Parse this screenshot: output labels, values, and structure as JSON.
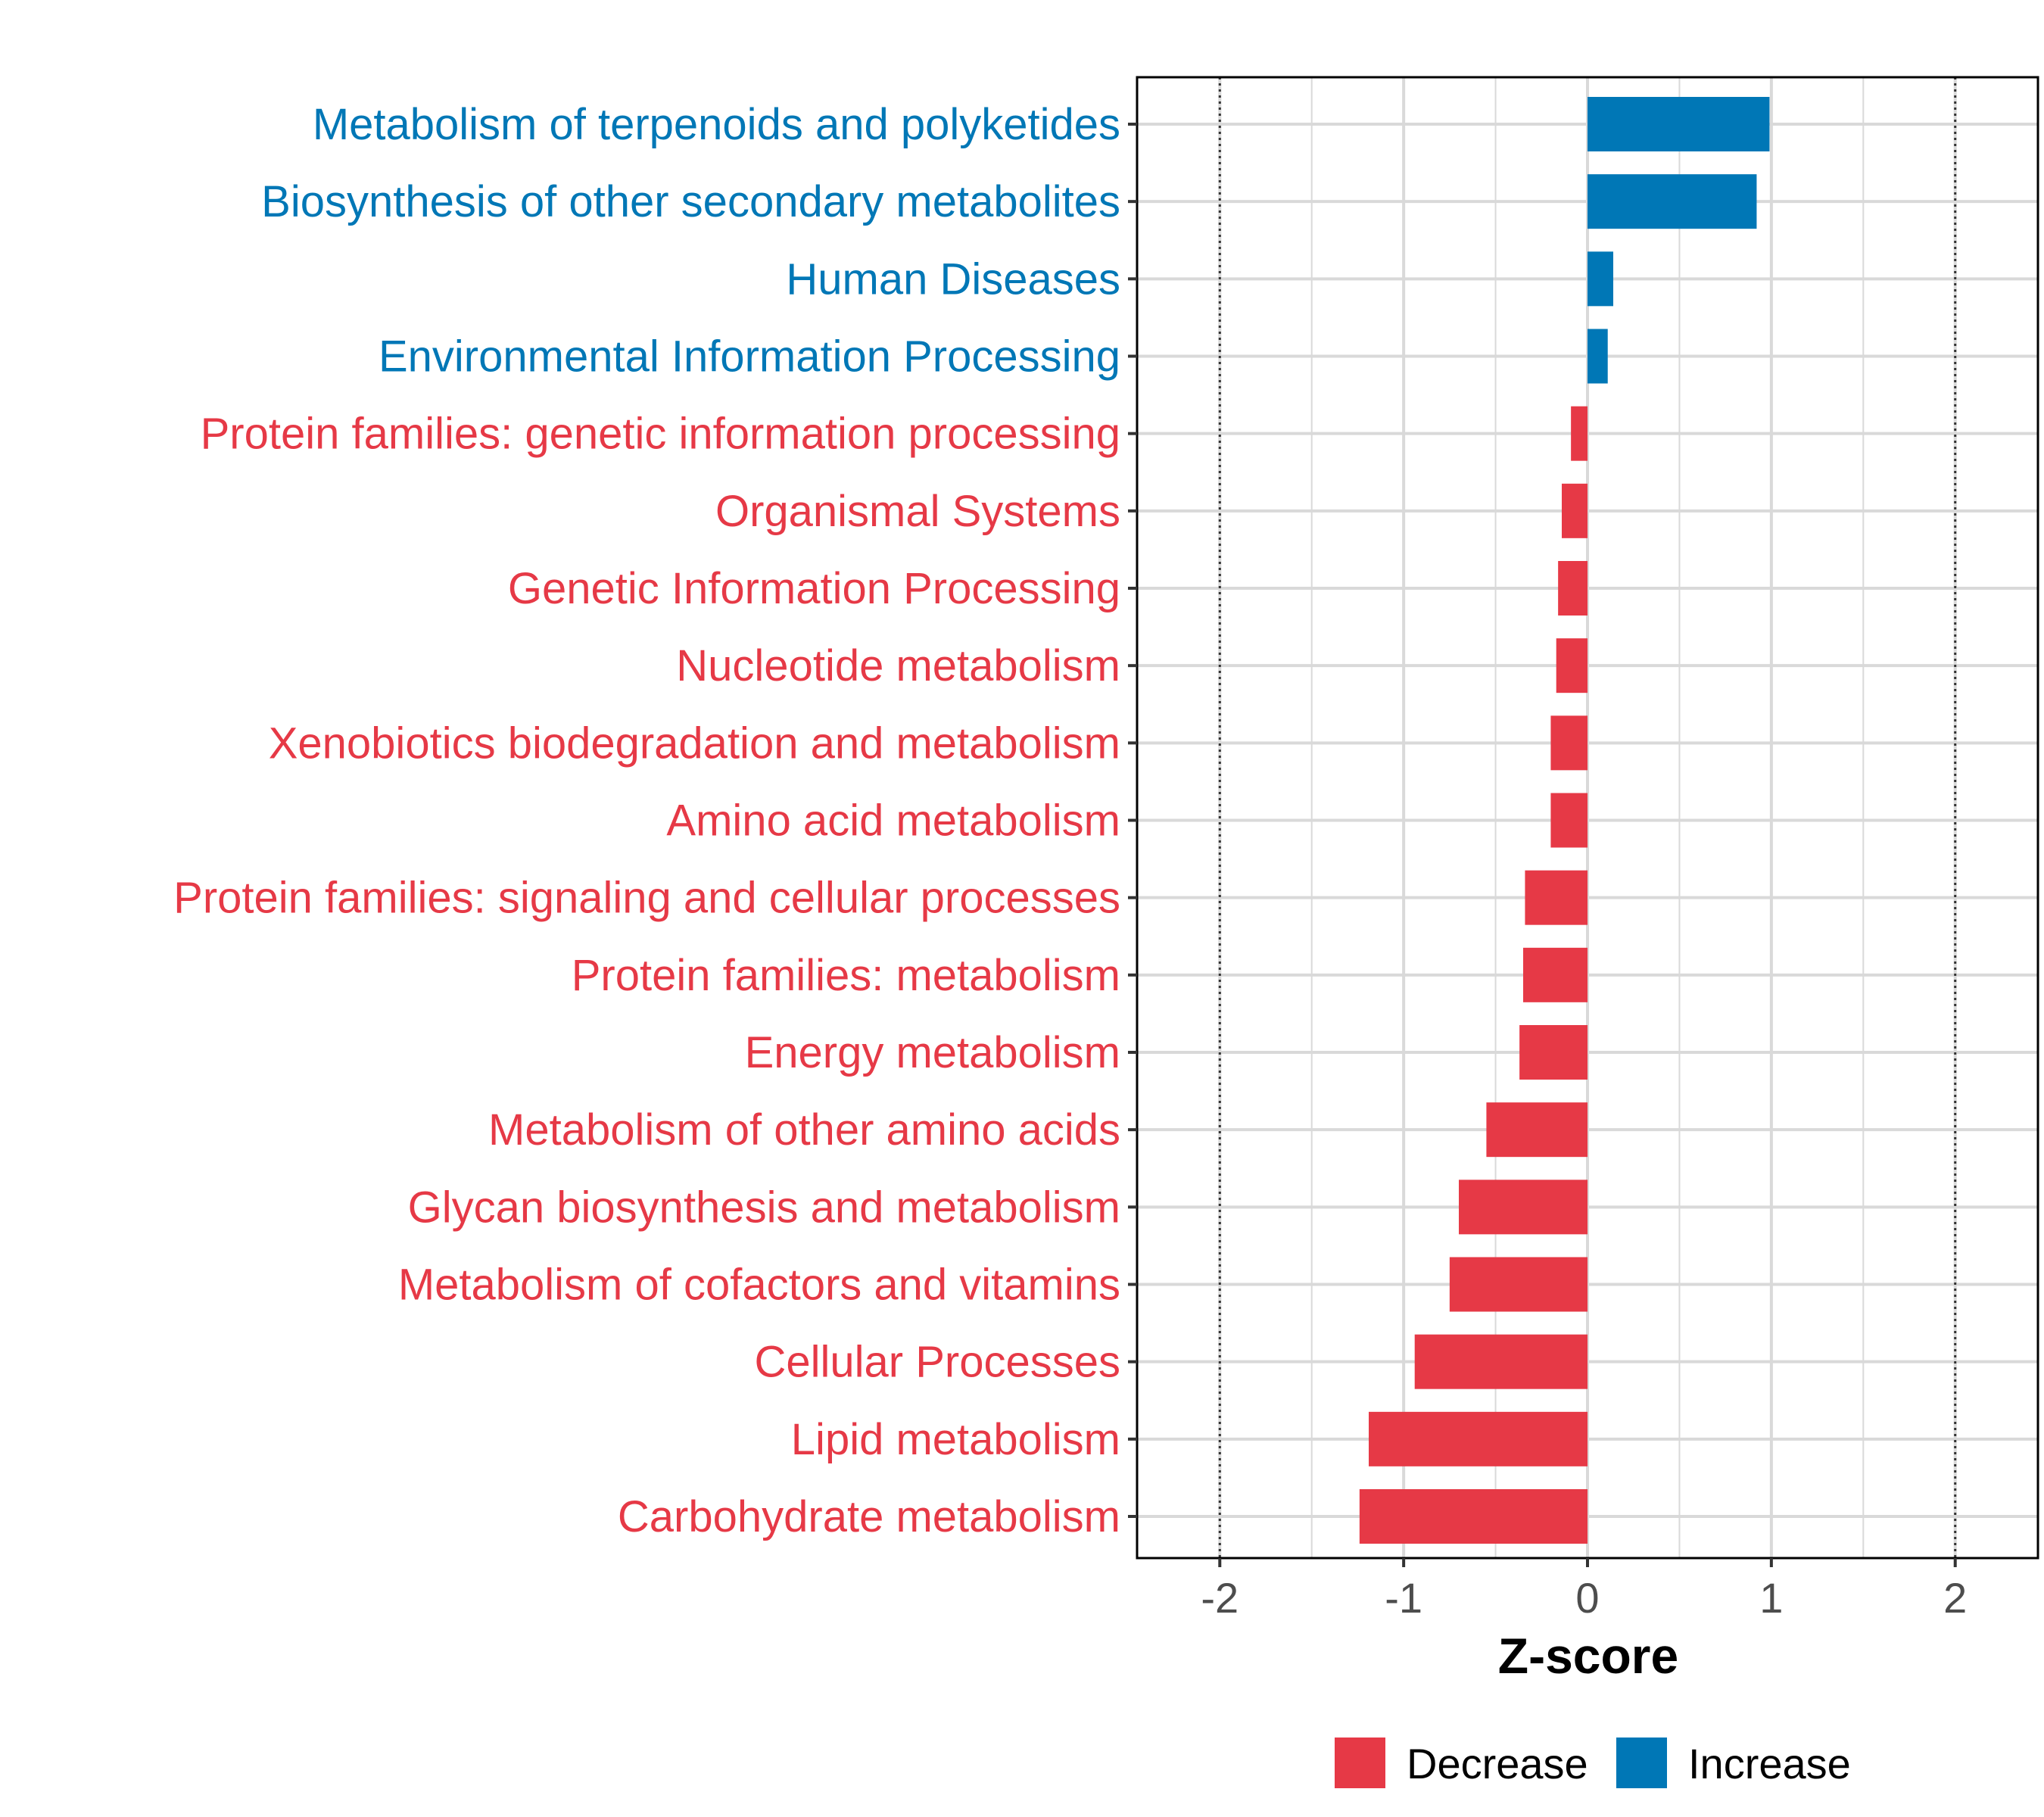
{
  "colors": {
    "decrease": "#e63946",
    "increase": "#0077b6",
    "grid": "#d9d9d9",
    "axis": "#000000",
    "tick_text": "#4d4d4d"
  },
  "chart_data": {
    "type": "bar",
    "orientation": "horizontal",
    "title": "",
    "xlabel": "Z-score",
    "ylabel": "",
    "xlim": [
      -2.45,
      2.45
    ],
    "x_ticks": [
      -2,
      -1,
      0,
      1,
      2
    ],
    "x_tick_labels": [
      "-2",
      "-1",
      "0",
      "1",
      "2"
    ],
    "reference_lines": [
      -2,
      2
    ],
    "grid": true,
    "legend_position": "bottom",
    "legend": [
      {
        "label": "Decrease",
        "color_key": "decrease"
      },
      {
        "label": "Increase",
        "color_key": "increase"
      }
    ],
    "categories": [
      "Metabolism of terpenoids and polyketides",
      "Biosynthesis of other secondary metabolites",
      "Human Diseases",
      "Environmental Information Processing",
      "Protein families: genetic information processing",
      "Organismal Systems",
      "Genetic Information Processing",
      "Nucleotide metabolism",
      "Xenobiotics biodegradation and metabolism",
      "Amino acid metabolism",
      "Protein families: signaling and cellular processes",
      "Protein families: metabolism",
      "Energy metabolism",
      "Metabolism of other amino acids",
      "Glycan biosynthesis and metabolism",
      "Metabolism of cofactors and vitamins",
      "Cellular Processes",
      "Lipid metabolism",
      "Carbohydrate metabolism"
    ],
    "values": [
      0.99,
      0.92,
      0.14,
      0.11,
      -0.09,
      -0.14,
      -0.16,
      -0.17,
      -0.2,
      -0.2,
      -0.34,
      -0.35,
      -0.37,
      -0.55,
      -0.7,
      -0.75,
      -0.94,
      -1.19,
      -1.24
    ],
    "groups": [
      "Increase",
      "Increase",
      "Increase",
      "Increase",
      "Decrease",
      "Decrease",
      "Decrease",
      "Decrease",
      "Decrease",
      "Decrease",
      "Decrease",
      "Decrease",
      "Decrease",
      "Decrease",
      "Decrease",
      "Decrease",
      "Decrease",
      "Decrease",
      "Decrease"
    ]
  }
}
